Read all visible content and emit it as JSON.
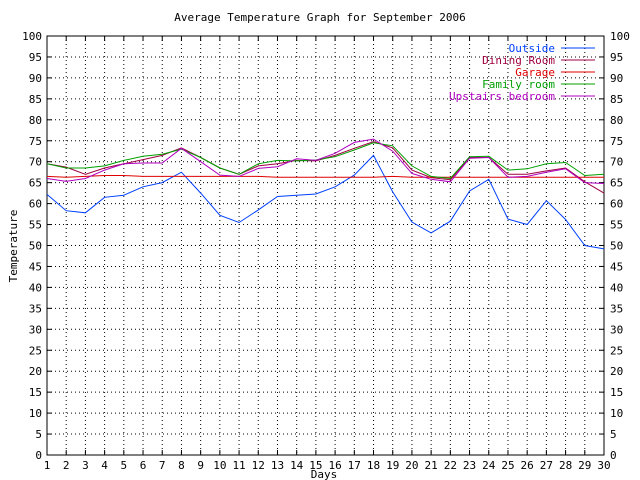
{
  "chart_data": {
    "type": "line",
    "title": "Average Temperature Graph for September 2006",
    "xlabel": "Days",
    "ylabel": "Temperature",
    "x": [
      1,
      2,
      3,
      4,
      5,
      6,
      7,
      8,
      9,
      10,
      11,
      12,
      13,
      14,
      15,
      16,
      17,
      18,
      19,
      20,
      21,
      22,
      23,
      24,
      25,
      26,
      27,
      28,
      29,
      30
    ],
    "xlim": [
      1,
      30
    ],
    "ylim": [
      0,
      100
    ],
    "yticks": [
      0,
      5,
      10,
      15,
      20,
      25,
      30,
      35,
      40,
      45,
      50,
      55,
      60,
      65,
      70,
      75,
      80,
      85,
      90,
      95,
      100
    ],
    "y2ticks": [
      0,
      5,
      10,
      15,
      20,
      25,
      30,
      35,
      40,
      45,
      50,
      55,
      60,
      65,
      70,
      75,
      80,
      85,
      90,
      95,
      100
    ],
    "xticks": [
      1,
      2,
      3,
      4,
      5,
      6,
      7,
      8,
      9,
      10,
      11,
      12,
      13,
      14,
      15,
      16,
      17,
      18,
      19,
      20,
      21,
      22,
      23,
      24,
      25,
      26,
      27,
      28,
      29,
      30
    ],
    "grid": true,
    "legend_position": "top-right",
    "series": [
      {
        "name": "Outside",
        "color": "#0040ff",
        "values": [
          62.2,
          58.3,
          57.8,
          61.5,
          62,
          64,
          65,
          67.5,
          62.5,
          57.2,
          55.5,
          58.5,
          61.7,
          62,
          62.3,
          64,
          66.8,
          71.5,
          62.8,
          55.6,
          53,
          55.8,
          63,
          65.8,
          56.3,
          55,
          60.7,
          56.2,
          50,
          49.2
        ]
      },
      {
        "name": "Dining Room",
        "color": "#a00040",
        "values": [
          69.5,
          68.7,
          67,
          68.5,
          69.5,
          70.5,
          71.5,
          73.3,
          71,
          68.5,
          67,
          69,
          69.5,
          70.3,
          70.2,
          71.5,
          73.2,
          74.8,
          73.3,
          68,
          66.2,
          65.7,
          71,
          71,
          67,
          67,
          67.8,
          68.5,
          65.2,
          62.5
        ]
      },
      {
        "name": "Garage",
        "color": "#e00000",
        "values": [
          66.5,
          66.3,
          66.5,
          66.7,
          66.7,
          66.5,
          66.5,
          66.5,
          66.5,
          66.5,
          66.5,
          66.5,
          66.3,
          66.3,
          66.3,
          66.3,
          66.3,
          66.3,
          66.5,
          66.3,
          66.3,
          66.3,
          66.3,
          66.3,
          66.3,
          66.3,
          66.3,
          66.3,
          66.3,
          66.3
        ]
      },
      {
        "name": "Family room",
        "color": "#00a000",
        "values": [
          69.5,
          68.5,
          68.5,
          69,
          70.3,
          71.3,
          71.8,
          73,
          71,
          68.5,
          67,
          69.5,
          70.3,
          70.2,
          70.4,
          71.2,
          72.8,
          74.5,
          73.8,
          69,
          66.5,
          66,
          71.2,
          71.3,
          68,
          68.3,
          69.5,
          69.8,
          66.7,
          67
        ]
      },
      {
        "name": "Upstairs bedroom",
        "color": "#b000c0",
        "values": [
          66,
          65.3,
          66,
          68,
          69.5,
          69.7,
          69.7,
          73.2,
          70,
          66.8,
          66.5,
          68.4,
          68.8,
          70.7,
          70.3,
          72,
          74.6,
          75.4,
          72.5,
          67.2,
          65.8,
          65.2,
          70.8,
          71,
          66.3,
          66.5,
          67.5,
          68.3,
          65,
          64.8
        ]
      }
    ]
  }
}
